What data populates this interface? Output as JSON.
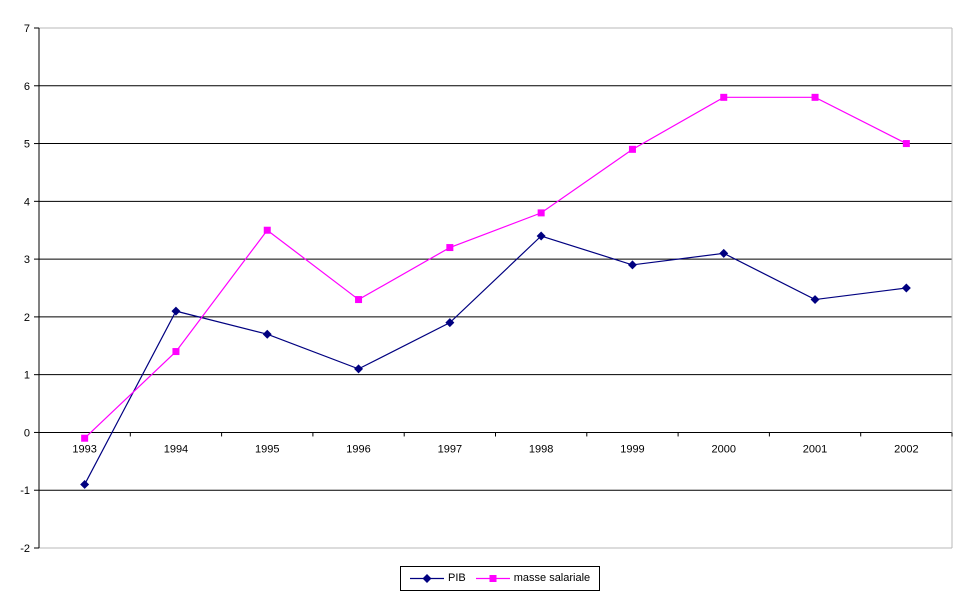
{
  "chart_data": {
    "type": "line",
    "title": "",
    "xlabel": "",
    "ylabel": "",
    "categories": [
      "1993",
      "1994",
      "1995",
      "1996",
      "1997",
      "1998",
      "1999",
      "2000",
      "2001",
      "2002"
    ],
    "series": [
      {
        "name": "PIB",
        "color": "#000080",
        "marker": "diamond",
        "values": [
          -0.9,
          2.1,
          1.7,
          1.1,
          1.9,
          3.4,
          2.9,
          3.1,
          2.3,
          2.5
        ]
      },
      {
        "name": "masse salariale",
        "color": "#FF00FF",
        "marker": "square",
        "values": [
          -0.1,
          1.4,
          3.5,
          2.3,
          3.2,
          3.8,
          4.9,
          5.8,
          5.8,
          5.0
        ]
      }
    ],
    "ylim": [
      -2,
      7
    ],
    "yticks": [
      7,
      6,
      5,
      4,
      3,
      2,
      1,
      0,
      -1,
      -2
    ],
    "grid": "horizontal",
    "gridline_color": "#000000",
    "plot_border_color": "#b8b8b8",
    "axis_color": "#000000",
    "legend_position": "bottom-center"
  },
  "legend": {
    "items": [
      {
        "label": "PIB"
      },
      {
        "label": "masse salariale"
      }
    ]
  }
}
